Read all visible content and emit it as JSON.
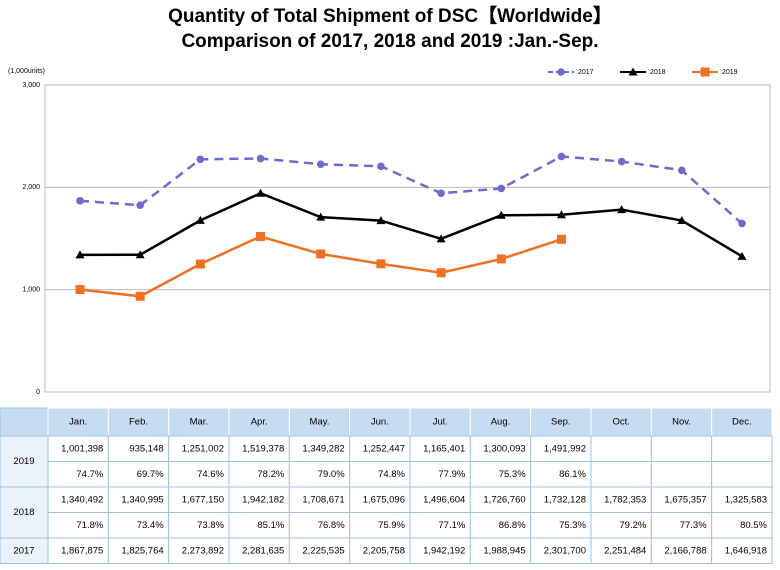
{
  "chart_data": {
    "type": "line",
    "title": "Quantity of Total Shipment of DSC【Worldwide】",
    "subtitle": "Comparison of 2017, 2018 and 2019 :Jan.-Sep.",
    "y_unit_label": "(1,000units)",
    "categories": [
      "Jan.",
      "Feb.",
      "Mar.",
      "Apr.",
      "May.",
      "Jun.",
      "Jul.",
      "Aug.",
      "Sep.",
      "Oct.",
      "Nov.",
      "Dec."
    ],
    "ylim": [
      0,
      3000
    ],
    "yticks": [
      0,
      {
        "value": 1000,
        "label": "1,000"
      },
      {
        "value": 2000,
        "label": "2,000"
      },
      {
        "value": 3000,
        "label": "3,000"
      }
    ],
    "grid": true,
    "legend": "top-right",
    "series": [
      {
        "name": "2017",
        "color": "#6b6bd0",
        "dash": true,
        "marker": "circle",
        "values": [
          1867.875,
          1825.764,
          2273.892,
          2281.635,
          2225.535,
          2205.758,
          1942.192,
          1988.945,
          2301.7,
          2251.484,
          2166.788,
          1646.918
        ],
        "value_labels": [
          "1,867,875",
          "1,825,764",
          "2,273,892",
          "2,281,635",
          "2,225,535",
          "2,205,758",
          "1,942,192",
          "1,988,945",
          "2,301,700",
          "2,251,484",
          "2,166,788",
          "1,646,918"
        ]
      },
      {
        "name": "2018",
        "color": "#000000",
        "dash": false,
        "marker": "triangle",
        "values": [
          1340.492,
          1340.995,
          1677.15,
          1942.182,
          1708.671,
          1675.096,
          1496.604,
          1726.76,
          1732.128,
          1782.353,
          1675.357,
          1325.583
        ],
        "value_labels": [
          "1,340,492",
          "1,340,995",
          "1,677,150",
          "1,942,182",
          "1,708,671",
          "1,675,096",
          "1,496,604",
          "1,726,760",
          "1,732,128",
          "1,782,353",
          "1,675,357",
          "1,325,583"
        ],
        "ratio_labels": [
          "71.8%",
          "73.4%",
          "73.8%",
          "85.1%",
          "76.8%",
          "75.9%",
          "77.1%",
          "86.8%",
          "75.3%",
          "79.2%",
          "77.3%",
          "80.5%"
        ]
      },
      {
        "name": "2019",
        "color": "#f07020",
        "dash": false,
        "marker": "square",
        "values": [
          1001.398,
          935.148,
          1251.002,
          1519.378,
          1349.282,
          1252.447,
          1165.401,
          1300.093,
          1491.992,
          null,
          null,
          null
        ],
        "value_labels": [
          "1,001,398",
          "935,148",
          "1,251,002",
          "1,519,378",
          "1,349,282",
          "1,252,447",
          "1,165,401",
          "1,300,093",
          "1,491,992",
          null,
          null,
          null
        ],
        "ratio_labels": [
          "74.7%",
          "69.7%",
          "74.6%",
          "78.2%",
          "79.0%",
          "74.8%",
          "77.9%",
          "75.3%",
          "86.1%",
          null,
          null,
          null
        ]
      }
    ]
  }
}
